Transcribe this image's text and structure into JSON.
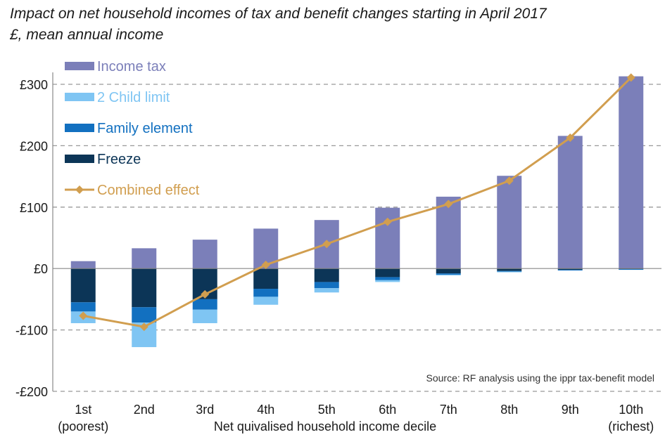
{
  "chart_data": {
    "type": "bar",
    "title": "Impact on net household incomes of tax and benefit changes starting in April 2017",
    "subtitle": "£, mean annual income",
    "xlabel": "Net quivalised household income decile",
    "ylabel": "",
    "source": "Source: RF analysis using the ippr tax-benefit model",
    "categories": [
      "1st",
      "2nd",
      "3rd",
      "4th",
      "5th",
      "6th",
      "7th",
      "8th",
      "9th",
      "10th"
    ],
    "category_sublabels": [
      "(poorest)",
      "",
      "",
      "",
      "",
      "",
      "",
      "",
      "",
      "(richest)"
    ],
    "ylim": [
      -200,
      300
    ],
    "yticks": [
      -200,
      -100,
      0,
      100,
      200,
      300
    ],
    "ytick_labels": [
      "-£200",
      "-£100",
      "£0",
      "£100",
      "£200",
      "£300"
    ],
    "grid": true,
    "legend_position": "top-left",
    "stacked": true,
    "series": [
      {
        "name": "Income tax",
        "color": "#7b7fb9",
        "values": [
          12,
          33,
          47,
          65,
          79,
          99,
          117,
          151,
          216,
          313
        ]
      },
      {
        "name": "Freeze",
        "color": "#0c3557",
        "values": [
          -55,
          -63,
          -50,
          -33,
          -22,
          -14,
          -8,
          -4,
          -2,
          -1
        ]
      },
      {
        "name": "Family element",
        "color": "#1270c0",
        "values": [
          -15,
          -25,
          -17,
          -13,
          -10,
          -5,
          -2,
          -1,
          -1,
          -1
        ]
      },
      {
        "name": "2 Child limit",
        "color": "#7fc5f3",
        "values": [
          -19,
          -40,
          -22,
          -13,
          -7,
          -3,
          -1,
          -1,
          0,
          0
        ]
      }
    ],
    "line_series": {
      "name": "Combined effect",
      "color": "#d19e4f",
      "values": [
        -77,
        -95,
        -42,
        6,
        40,
        76,
        105,
        143,
        213,
        311
      ]
    },
    "legend_order": [
      "Income tax",
      "2 Child limit",
      "Family element",
      "Freeze",
      "Combined effect"
    ]
  }
}
